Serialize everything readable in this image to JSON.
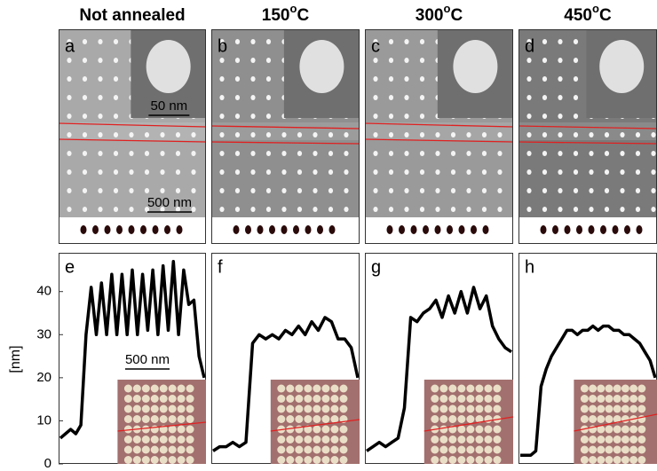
{
  "panels": [
    {
      "header": {
        "number": "Not annealed"
      },
      "sem_letter": "a",
      "profile_letter": "e"
    },
    {
      "header": {
        "number": "150",
        "sup": "o",
        "unit": "C"
      },
      "sem_letter": "b",
      "profile_letter": "f"
    },
    {
      "header": {
        "number": "300",
        "sup": "o",
        "unit": "C"
      },
      "sem_letter": "c",
      "profile_letter": "g"
    },
    {
      "header": {
        "number": "450",
        "sup": "o",
        "unit": "C"
      },
      "sem_letter": "d",
      "profile_letter": "h"
    }
  ],
  "scale_labels": {
    "inset": "50 nm",
    "sem": "500 nm",
    "afm": "500 nm"
  },
  "chart_data": [
    {
      "type": "line",
      "ylabel": "[nm]",
      "ylim": [
        0,
        49
      ],
      "yticks": [
        0,
        10,
        20,
        30,
        40
      ],
      "color": "#000000",
      "values": [
        6,
        7,
        8,
        7,
        9,
        30,
        41,
        30,
        42,
        30,
        44,
        30,
        44,
        30,
        45,
        30,
        44,
        31,
        45,
        30,
        46,
        31,
        47,
        30,
        45,
        37,
        38,
        25,
        20
      ]
    },
    {
      "type": "line",
      "ylim": [
        0,
        49
      ],
      "color": "#000000",
      "values": [
        3,
        4,
        4,
        5,
        4,
        5,
        28,
        30,
        29,
        30,
        29,
        31,
        30,
        32,
        30,
        33,
        31,
        34,
        33,
        29,
        29,
        27,
        20
      ]
    },
    {
      "type": "line",
      "ylim": [
        0,
        49
      ],
      "color": "#000000",
      "values": [
        3,
        4,
        5,
        4,
        5,
        6,
        13,
        34,
        33,
        35,
        36,
        38,
        34,
        39,
        35,
        40,
        35,
        41,
        36,
        39,
        32,
        29,
        27,
        26
      ]
    },
    {
      "type": "line",
      "ylim": [
        0,
        49
      ],
      "color": "#000000",
      "values": [
        2,
        2,
        2,
        3,
        18,
        22,
        25,
        27,
        29,
        31,
        31,
        30,
        31,
        31,
        32,
        31,
        32,
        32,
        31,
        31,
        30,
        30,
        29,
        28,
        26,
        24,
        20
      ]
    }
  ]
}
